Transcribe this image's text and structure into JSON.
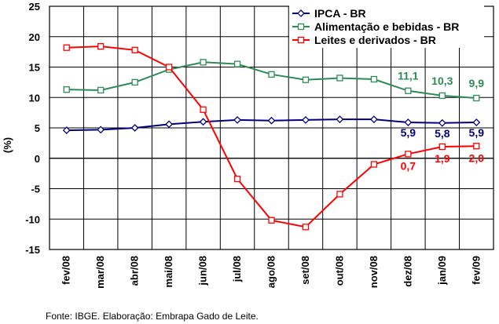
{
  "chart_data": {
    "type": "line",
    "ylabel": "(%)",
    "ylim": [
      -15,
      25
    ],
    "yticks": [
      -15,
      -10,
      -5,
      0,
      5,
      10,
      15,
      20,
      25
    ],
    "grid": true,
    "legend_position": "top-right",
    "categories": [
      "fev/08",
      "mar/08",
      "abr/08",
      "mai/08",
      "jun/08",
      "jul/08",
      "ago/08",
      "set/08",
      "out/08",
      "nov/08",
      "dez/08",
      "jan/09",
      "fev/09"
    ],
    "series": [
      {
        "name": "IPCA - BR",
        "color": "#00007f",
        "marker": "diamond",
        "values": [
          4.6,
          4.7,
          5.0,
          5.6,
          6.0,
          6.3,
          6.2,
          6.3,
          6.4,
          6.4,
          5.9,
          5.8,
          5.9
        ],
        "labels": {
          "10": "5,9",
          "11": "5,8",
          "12": "5,9"
        }
      },
      {
        "name": "Alimentação e bebidas - BR",
        "color": "#2e8b57",
        "marker": "square",
        "values": [
          11.3,
          11.2,
          12.5,
          14.6,
          15.8,
          15.5,
          13.8,
          12.9,
          13.2,
          13.0,
          11.1,
          10.3,
          9.9
        ],
        "labels": {
          "10": "11,1",
          "11": "10,3",
          "12": "9,9"
        }
      },
      {
        "name": "Leites e derivados - BR",
        "color": "#ff0000",
        "marker": "square",
        "values": [
          18.2,
          18.4,
          17.8,
          15.0,
          8.0,
          -3.4,
          -10.2,
          -11.3,
          -5.9,
          -1.0,
          0.7,
          1.9,
          2.0
        ],
        "labels": {
          "10": "0,7",
          "11": "1,9",
          "12": "2,0"
        }
      }
    ]
  },
  "source_text": "Fonte: IBGE. Elaboração: Embrapa Gado de Leite."
}
